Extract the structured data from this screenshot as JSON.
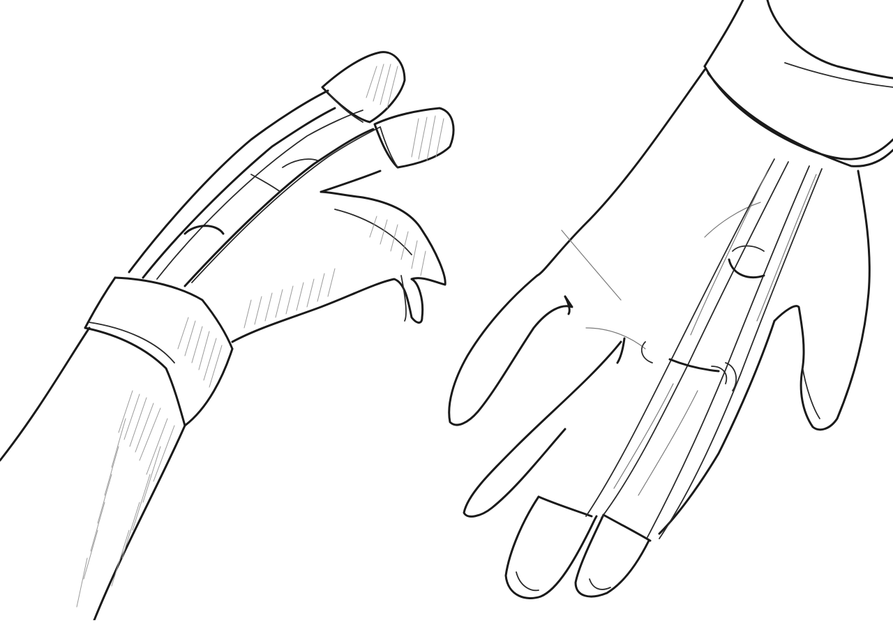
{
  "image": {
    "kind": "pencil-sketch",
    "subject": "hands-with-finger-splint-device",
    "colors": {
      "paper": "#ffffff",
      "ink": "#1a1a1a",
      "shade": "#9a9a9a"
    }
  },
  "elements": [
    {
      "name": "left-hand-side-view",
      "icon": "hand-icon"
    },
    {
      "name": "right-hand-palm-view",
      "icon": "hand-icon"
    }
  ]
}
